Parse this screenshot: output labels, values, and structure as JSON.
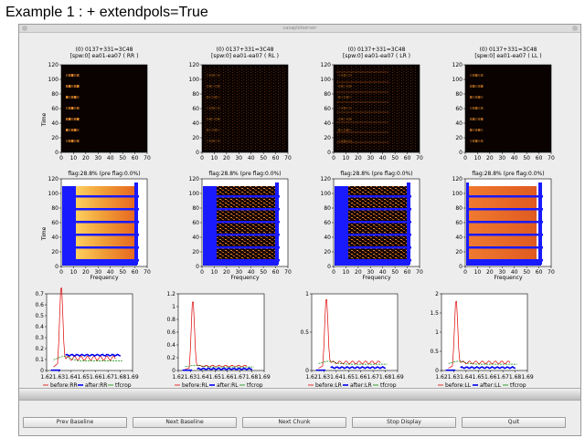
{
  "caption": "Example 1 :  + extendpols=True",
  "window": {
    "title": "casaplotserver"
  },
  "row1": {
    "titles": [
      [
        "(0) 0137+331=3C48",
        "[spw:0] ea01-ea07  ( RR )"
      ],
      [
        "(0) 0137+331=3C48",
        "[spw:0] ea01-ea07  ( RL )"
      ],
      [
        "(0) 0137+331=3C48",
        "[spw:0] ea01-ea07  ( LR )"
      ],
      [
        "(0) 0137+331=3C48",
        "[spw:0] ea01-ea07  ( LL )"
      ]
    ],
    "ylabel": "Time"
  },
  "row2": {
    "titles": [
      "flag:28.8% (pre flag:0.0%)",
      "flag:28.8% (pre flag:0.0%)",
      "flag:28.8% (pre flag:0.0%)",
      "flag:28.8% (pre flag:0.0%)"
    ],
    "ylabel": "Time",
    "xlabel": "Frequency"
  },
  "image_axis": {
    "x_ticks": [
      "0",
      "10",
      "20",
      "30",
      "40",
      "50",
      "60",
      "70"
    ],
    "y_ticks": [
      "0",
      "20",
      "40",
      "60",
      "80",
      "100",
      "120"
    ]
  },
  "spectra": {
    "x_ticks": [
      "1.62",
      "1.63",
      "1.64",
      "1.65",
      "1.66",
      "1.67",
      "1.68",
      "1.69"
    ],
    "panels": [
      {
        "y_ticks": [
          "0",
          "0.1",
          "0.2",
          "0.3",
          "0.4",
          "0.5",
          "0.6",
          "0.7"
        ],
        "ymax": 0.7,
        "legend": [
          "before:RR",
          "after:RR",
          "tfcrop"
        ]
      },
      {
        "y_ticks": [
          "0",
          "0.2",
          "0.4",
          "0.6",
          "0.8",
          "1",
          "1.2"
        ],
        "ymax": 1.2,
        "legend": [
          "before:RL",
          "after:RL",
          "tfcrop"
        ]
      },
      {
        "y_ticks": [
          "0",
          "0.5",
          "1"
        ],
        "ymax": 1.0,
        "legend": [
          "before:LR",
          "after:LR",
          "tfcrop"
        ]
      },
      {
        "y_ticks": [
          "0",
          "0.5",
          "1",
          "1.5",
          "2"
        ],
        "ymax": 2.0,
        "legend": [
          "before:LL",
          "after:LL",
          "tfcrop"
        ]
      }
    ]
  },
  "colors": {
    "before": "#dd0000",
    "after": "#0000ee",
    "tfcrop": "#008800",
    "flagged": "#1a1aff"
  },
  "buttons": [
    "Prev Baseline",
    "Next Baseline",
    "Next Chunk",
    "Stop Display",
    "Quit"
  ]
}
